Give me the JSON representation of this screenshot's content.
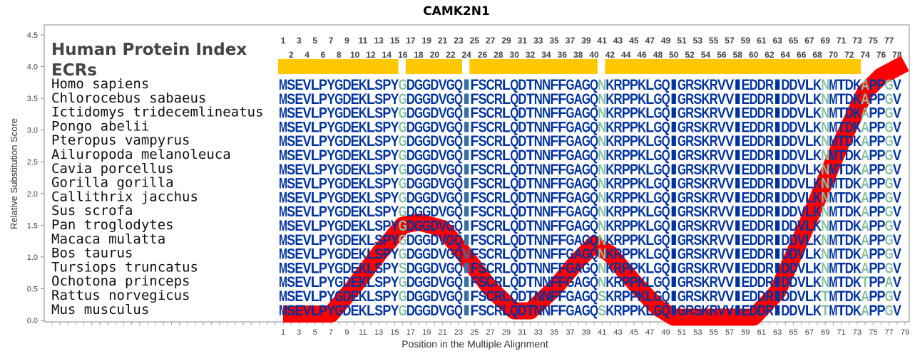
{
  "chart_data": {
    "type": "line",
    "title": "CAMK2N1",
    "xlabel": "Position in the Multiple Alignment",
    "ylabel": "Relative Substitution Score",
    "ylim": [
      0,
      4.5
    ],
    "xlim": [
      1,
      79
    ],
    "yticks": [
      "0.0",
      "0.5",
      "1.0",
      "1.5",
      "2.0",
      "2.5",
      "3.0",
      "3.5",
      "4.0",
      "4.5"
    ],
    "xticks": [
      1,
      3,
      5,
      7,
      9,
      11,
      13,
      15,
      17,
      19,
      21,
      23,
      25,
      27,
      29,
      31,
      33,
      35,
      37,
      39,
      41,
      43,
      45,
      47,
      49,
      51,
      53,
      55,
      57,
      59,
      61,
      63,
      65,
      67,
      69,
      71,
      73,
      75,
      77,
      79
    ],
    "series": [
      {
        "name": "Relative Substitution Score",
        "color": "#ff0000",
        "points": [
          [
            1,
            0.1
          ],
          [
            7,
            0.1
          ],
          [
            10,
            0.55
          ],
          [
            13,
            1.05
          ],
          [
            16,
            1.5
          ],
          [
            18,
            1.55
          ],
          [
            21,
            1.45
          ],
          [
            24,
            1.0
          ],
          [
            27,
            0.5
          ],
          [
            30,
            0.15
          ],
          [
            32,
            0.15
          ],
          [
            35,
            0.5
          ],
          [
            38,
            0.95
          ],
          [
            40,
            1.2
          ],
          [
            42,
            1.05
          ],
          [
            45,
            0.6
          ],
          [
            48,
            0.2
          ],
          [
            50,
            0.05
          ],
          [
            60,
            0.05
          ],
          [
            63,
            0.45
          ],
          [
            67,
            1.6
          ],
          [
            71,
            2.8
          ],
          [
            74,
            3.6
          ],
          [
            76,
            3.85
          ],
          [
            79,
            4.05
          ]
        ]
      }
    ]
  },
  "header": {
    "hpi_label": "Human Protein Index",
    "ecr_label": "ECRs"
  },
  "ecr_segments": [
    [
      1,
      15
    ],
    [
      17,
      23
    ],
    [
      25,
      40
    ],
    [
      42,
      73
    ]
  ],
  "positions": 78,
  "colors": {
    "residue": "#0033a0",
    "variable": "#88c0a0",
    "column24": "#3a6fa0",
    "ecr": "#ffc800"
  },
  "variable_columns": [
    16,
    41,
    69,
    74,
    77
  ],
  "alignment": [
    {
      "species": "Homo sapiens",
      "seq": "MSEVLPYGDEKLSPYGDGGDVGQIFSCRLQDTNNFFGAGQNKRPPKLGQIGRSKRVVIEDDRIDDVLKNMTDKAPPGV"
    },
    {
      "species": "Chlorocebus sabaeus",
      "seq": "MSEVLPYGDEKLSPYGDGGDVGQIFSCRLQDTNNFFGAGQNKRPPKLGQIGRSKRVVIEDDRIDDVLKNMTDKAPPGV"
    },
    {
      "species": "Ictidomys tridecemlineatus",
      "seq": "MSEVLPYGDEKLSPYGDGGDVGQIFSCRLQDTNNFFGAGQNKRPPKLGQIGRSKRVVIEDDRIDDVLKNMTDKAPPGV"
    },
    {
      "species": "Pongo abelii",
      "seq": "MSEVLPYGDEKLSPYGDGGDVGQIFSCRLQDTNNFFGAGQNKRPPKLGQIGRSKRVVIEDDRIDDVLKNMTDKAPPGV"
    },
    {
      "species": "Pteropus vampyrus",
      "seq": "MSEVLPYGDEKLSPYGDGGDVGQIFSCRLQDTNNFFGAGQNKRPPKLGQIGRSKRVVIEDDRIDDVLKNMTDKAPPGV"
    },
    {
      "species": "Ailuropoda melanoleuca",
      "seq": "MSEVLPYGDEKLSPYGDGGDVGQIFSCRLQDTNNFFGAGQNKRPPKLGQIGRSKRVVIEDDRIDDVLKNMTDKAPPGV"
    },
    {
      "species": "Cavia porcellus",
      "seq": "MSEVLPYGDEKLSPYGDGGDVGQIFSCRLQDTNNFFGAGQNKRPPKLGQIGRSKRVVIEDDRIDDVLKNMTDKAPPGV"
    },
    {
      "species": "Gorilla gorilla",
      "seq": "MSEVLPYGDEKLSPYGDGGDVGQIFSCRLQDTNNFFGAGQNKRPPKLGQIGRSKRVVIEDDRIDDVLKNMTDKAPPGV"
    },
    {
      "species": "Callithrix jacchus",
      "seq": "MSEVLPYGDEKLSPYGDGGDVGQIFSCRLQDTNNFFGAGQNKRPPKLGQIGRSKRVVIEDDRIDDVLKNMTDKAPPGV"
    },
    {
      "species": "Sus scrofa",
      "seq": "MSEVLPYGDEKLSPYGDGGDVGQIFSCRLQDTNNFFGAGQNKRPPKLGQIGRSKRVVIEDDRIDDVLKNMTDKAPPGV"
    },
    {
      "species": "Pan troglodytes",
      "seq": "MSEVLPYGDEKLSPYGDGGDVGQIFSCRLQDTNNFFGAGQNKRPPKLGQIGRSKRVVIEDDRIDDVLKNMTDKAPPGV"
    },
    {
      "species": "Macaca mulatta",
      "seq": "MSEVLPYGDEKLSPYGDGGDVGQIFSCRLQDTNNFFGAGQNKRPPKLGQIGRSKRVVIEDDRIDDVLKNMTDKAPPGV"
    },
    {
      "species": "Bos taurus",
      "seq": "MSEVLPYGDEKLSPYGDGGDVGQVFSCRLQDTNNFFGAGQNKRPPKLGQIGRSKRVVIEDDRIDDVLKNMTDKAPPGV"
    },
    {
      "species": "Tursiops truncatus",
      "seq": "MSEVLPYGDEKLSPYSDGGDVGQIFSCRLQDTNNFFGAGQNKRPPKLGQIGRSKRVVIEDDRIDDVLKNMTDKAPPGV"
    },
    {
      "species": "Ochotona princeps",
      "seq": "MSEVLPYGDEKLSPYGDGGDVGQIFSCRLQDTNNFFGAGQNKRPPKLGQIGRSKRVVIEDDRIDDVLKNMTDKTPPAV"
    },
    {
      "species": "Rattus norvegicus",
      "seq": "MSEVLPYGDEKLSPYGDGGDVGQIFSCRLQDTNNFFGAGQSKRPPKLGQIGRSKRVVIEDDRIDDVLKTMTDKAPPGV"
    },
    {
      "species": "Mus musculus",
      "seq": "MSEVLPYGDEKLSPYGDGGDVGQIFSCRLQDTNNFFGAGQSKRPPKLGQIGRSKRVVIEDDRIDDVLKTMTDKAPPGV"
    }
  ]
}
